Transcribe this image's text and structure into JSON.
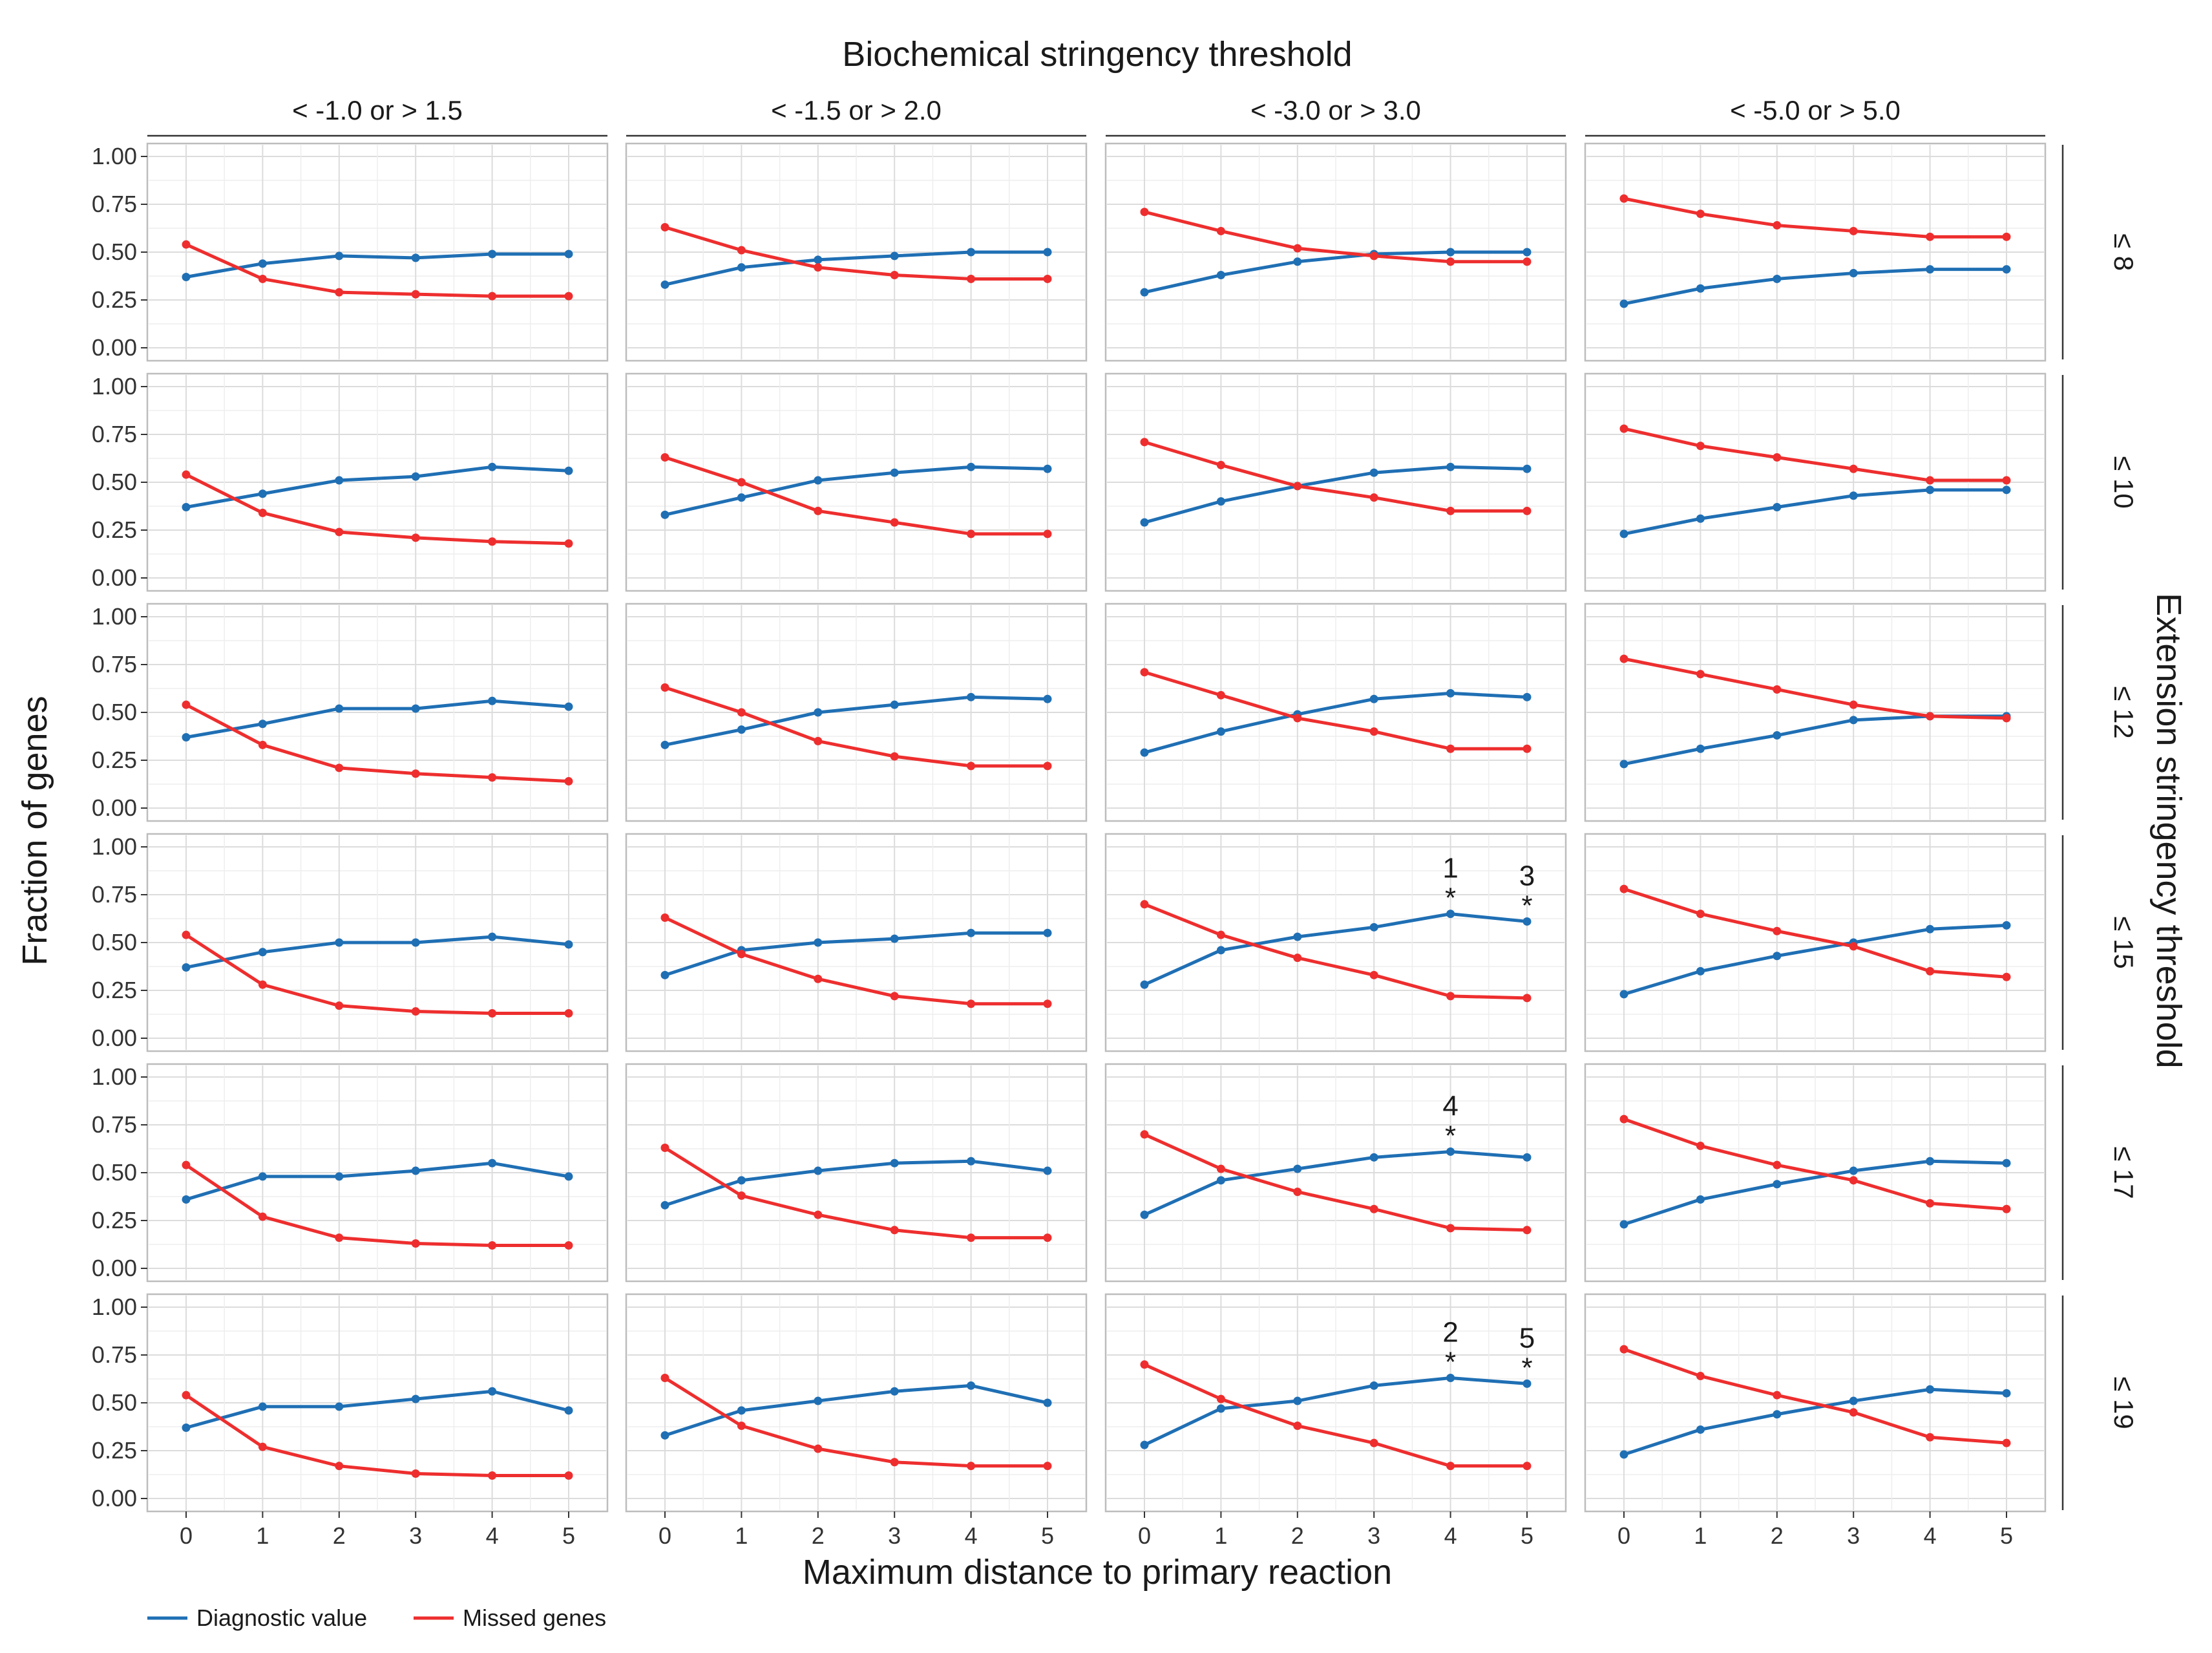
{
  "chart_data": {
    "type": "line",
    "facet_layout": "grid",
    "title_top": "Biochemical stringency threshold",
    "title_right": "Extension stringency threshold",
    "xlabel": "Maximum distance to primary reaction",
    "ylabel": "Fraction of genes",
    "column_labels": [
      "< -1.0 or > 1.5",
      "< -1.5 or > 2.0",
      "< -3.0 or > 3.0",
      "< -5.0 or > 5.0"
    ],
    "row_labels": [
      "≤  8",
      "≤ 10",
      "≤ 12",
      "≤ 15",
      "≤ 17",
      "≤ 19"
    ],
    "x": [
      0,
      1,
      2,
      3,
      4,
      5
    ],
    "x_ticks": [
      "0",
      "1",
      "2",
      "3",
      "4",
      "5"
    ],
    "y_ticks": [
      "0.00",
      "0.25",
      "0.50",
      "0.75",
      "1.00"
    ],
    "ylim": [
      0,
      1
    ],
    "grid": true,
    "legend_position": "bottom-left",
    "series_meta": [
      {
        "key": "diag",
        "name": "Diagnostic value",
        "color": "#1f6fb4"
      },
      {
        "key": "miss",
        "name": "Missed genes",
        "color": "#ee2e2e"
      }
    ],
    "panels": [
      {
        "row": 0,
        "col": 0,
        "diag": [
          0.37,
          0.44,
          0.48,
          0.47,
          0.49,
          0.49
        ],
        "miss": [
          0.54,
          0.36,
          0.29,
          0.28,
          0.27,
          0.27
        ]
      },
      {
        "row": 0,
        "col": 1,
        "diag": [
          0.33,
          0.42,
          0.46,
          0.48,
          0.5,
          0.5
        ],
        "miss": [
          0.63,
          0.51,
          0.42,
          0.38,
          0.36,
          0.36
        ]
      },
      {
        "row": 0,
        "col": 2,
        "diag": [
          0.29,
          0.38,
          0.45,
          0.49,
          0.5,
          0.5
        ],
        "miss": [
          0.71,
          0.61,
          0.52,
          0.48,
          0.45,
          0.45
        ]
      },
      {
        "row": 0,
        "col": 3,
        "diag": [
          0.23,
          0.31,
          0.36,
          0.39,
          0.41,
          0.41
        ],
        "miss": [
          0.78,
          0.7,
          0.64,
          0.61,
          0.58,
          0.58
        ]
      },
      {
        "row": 1,
        "col": 0,
        "diag": [
          0.37,
          0.44,
          0.51,
          0.53,
          0.58,
          0.56
        ],
        "miss": [
          0.54,
          0.34,
          0.24,
          0.21,
          0.19,
          0.18
        ]
      },
      {
        "row": 1,
        "col": 1,
        "diag": [
          0.33,
          0.42,
          0.51,
          0.55,
          0.58,
          0.57
        ],
        "miss": [
          0.63,
          0.5,
          0.35,
          0.29,
          0.23,
          0.23
        ]
      },
      {
        "row": 1,
        "col": 2,
        "diag": [
          0.29,
          0.4,
          0.48,
          0.55,
          0.58,
          0.57
        ],
        "miss": [
          0.71,
          0.59,
          0.48,
          0.42,
          0.35,
          0.35
        ]
      },
      {
        "row": 1,
        "col": 3,
        "diag": [
          0.23,
          0.31,
          0.37,
          0.43,
          0.46,
          0.46
        ],
        "miss": [
          0.78,
          0.69,
          0.63,
          0.57,
          0.51,
          0.51
        ]
      },
      {
        "row": 2,
        "col": 0,
        "diag": [
          0.37,
          0.44,
          0.52,
          0.52,
          0.56,
          0.53
        ],
        "miss": [
          0.54,
          0.33,
          0.21,
          0.18,
          0.16,
          0.14
        ]
      },
      {
        "row": 2,
        "col": 1,
        "diag": [
          0.33,
          0.41,
          0.5,
          0.54,
          0.58,
          0.57
        ],
        "miss": [
          0.63,
          0.5,
          0.35,
          0.27,
          0.22,
          0.22
        ]
      },
      {
        "row": 2,
        "col": 2,
        "diag": [
          0.29,
          0.4,
          0.49,
          0.57,
          0.6,
          0.58
        ],
        "miss": [
          0.71,
          0.59,
          0.47,
          0.4,
          0.31,
          0.31
        ]
      },
      {
        "row": 2,
        "col": 3,
        "diag": [
          0.23,
          0.31,
          0.38,
          0.46,
          0.48,
          0.48
        ],
        "miss": [
          0.78,
          0.7,
          0.62,
          0.54,
          0.48,
          0.47
        ]
      },
      {
        "row": 3,
        "col": 0,
        "diag": [
          0.37,
          0.45,
          0.5,
          0.5,
          0.53,
          0.49
        ],
        "miss": [
          0.54,
          0.28,
          0.17,
          0.14,
          0.13,
          0.13
        ]
      },
      {
        "row": 3,
        "col": 1,
        "diag": [
          0.33,
          0.46,
          0.5,
          0.52,
          0.55,
          0.55
        ],
        "miss": [
          0.63,
          0.44,
          0.31,
          0.22,
          0.18,
          0.18
        ]
      },
      {
        "row": 3,
        "col": 2,
        "diag": [
          0.28,
          0.46,
          0.53,
          0.58,
          0.65,
          0.61
        ],
        "miss": [
          0.7,
          0.54,
          0.42,
          0.33,
          0.22,
          0.21
        ]
      },
      {
        "row": 3,
        "col": 3,
        "diag": [
          0.23,
          0.35,
          0.43,
          0.5,
          0.57,
          0.59
        ],
        "miss": [
          0.78,
          0.65,
          0.56,
          0.48,
          0.35,
          0.32
        ]
      },
      {
        "row": 4,
        "col": 0,
        "diag": [
          0.36,
          0.48,
          0.48,
          0.51,
          0.55,
          0.48
        ],
        "miss": [
          0.54,
          0.27,
          0.16,
          0.13,
          0.12,
          0.12
        ]
      },
      {
        "row": 4,
        "col": 1,
        "diag": [
          0.33,
          0.46,
          0.51,
          0.55,
          0.56,
          0.51
        ],
        "miss": [
          0.63,
          0.38,
          0.28,
          0.2,
          0.16,
          0.16
        ]
      },
      {
        "row": 4,
        "col": 2,
        "diag": [
          0.28,
          0.46,
          0.52,
          0.58,
          0.61,
          0.58
        ],
        "miss": [
          0.7,
          0.52,
          0.4,
          0.31,
          0.21,
          0.2
        ]
      },
      {
        "row": 4,
        "col": 3,
        "diag": [
          0.23,
          0.36,
          0.44,
          0.51,
          0.56,
          0.55
        ],
        "miss": [
          0.78,
          0.64,
          0.54,
          0.46,
          0.34,
          0.31
        ]
      },
      {
        "row": 5,
        "col": 0,
        "diag": [
          0.37,
          0.48,
          0.48,
          0.52,
          0.56,
          0.46
        ],
        "miss": [
          0.54,
          0.27,
          0.17,
          0.13,
          0.12,
          0.12
        ]
      },
      {
        "row": 5,
        "col": 1,
        "diag": [
          0.33,
          0.46,
          0.51,
          0.56,
          0.59,
          0.5
        ],
        "miss": [
          0.63,
          0.38,
          0.26,
          0.19,
          0.17,
          0.17
        ]
      },
      {
        "row": 5,
        "col": 2,
        "diag": [
          0.28,
          0.47,
          0.51,
          0.59,
          0.63,
          0.6
        ],
        "miss": [
          0.7,
          0.52,
          0.38,
          0.29,
          0.17,
          0.17
        ]
      },
      {
        "row": 5,
        "col": 3,
        "diag": [
          0.23,
          0.36,
          0.44,
          0.51,
          0.57,
          0.55
        ],
        "miss": [
          0.78,
          0.64,
          0.54,
          0.45,
          0.32,
          0.29
        ]
      }
    ],
    "annotations": [
      {
        "row": 3,
        "col": 2,
        "x": 4,
        "y": 0.65,
        "label": "1",
        "mark": "*"
      },
      {
        "row": 3,
        "col": 2,
        "x": 5,
        "y": 0.61,
        "label": "3",
        "mark": "*"
      },
      {
        "row": 4,
        "col": 2,
        "x": 4,
        "y": 0.61,
        "label": "4",
        "mark": "*"
      },
      {
        "row": 5,
        "col": 2,
        "x": 4,
        "y": 0.63,
        "label": "2",
        "mark": "*"
      },
      {
        "row": 5,
        "col": 2,
        "x": 5,
        "y": 0.6,
        "label": "5",
        "mark": "*"
      }
    ]
  }
}
